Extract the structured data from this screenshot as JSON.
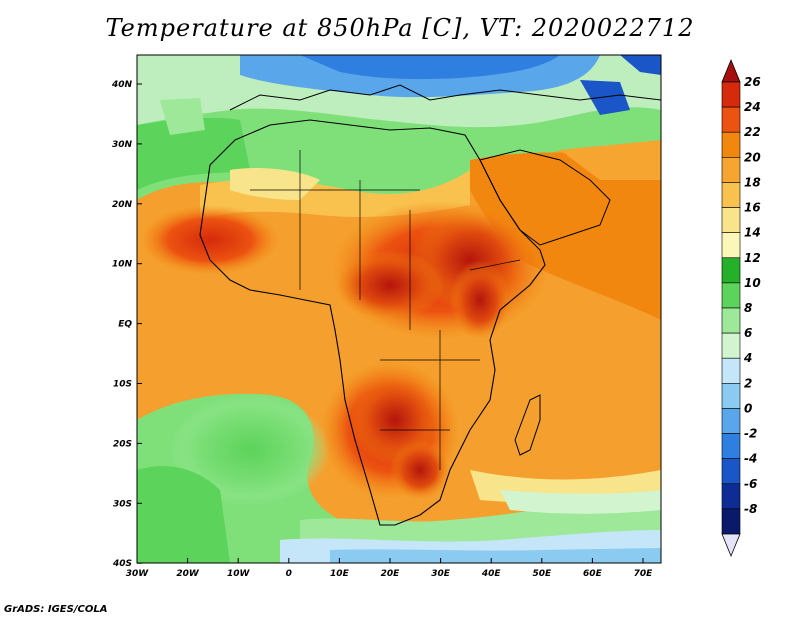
{
  "title": "Temperature at 850hPa [C], VT: 2020022712",
  "footer": "GrADS: IGES/COLA",
  "map": {
    "lat_labels": [
      "40N",
      "30N",
      "20N",
      "10N",
      "EQ",
      "10S",
      "20S",
      "30S",
      "40S"
    ],
    "lon_labels": [
      "30W",
      "20W",
      "10W",
      "0",
      "10E",
      "20E",
      "30E",
      "40E",
      "50E",
      "60E",
      "70E"
    ]
  },
  "colorbar": {
    "labels": [
      "26",
      "24",
      "22",
      "20",
      "18",
      "16",
      "14",
      "12",
      "10",
      "8",
      "6",
      "4",
      "2",
      "0",
      "-2",
      "-4",
      "-6",
      "-8"
    ],
    "colors": [
      "#a50f0f",
      "#d52a0c",
      "#ec5210",
      "#f2870f",
      "#f7a531",
      "#f9c24f",
      "#f8e48a",
      "#fbf7b8",
      "#26b02a",
      "#5cd35a",
      "#9ee89a",
      "#d2f5d0",
      "#c4e6f8",
      "#8ccbf1",
      "#5aa6ea",
      "#2f7fe1",
      "#1a56c8",
      "#0e2d94",
      "#0a1a6a",
      "#e6e4f8"
    ]
  }
}
